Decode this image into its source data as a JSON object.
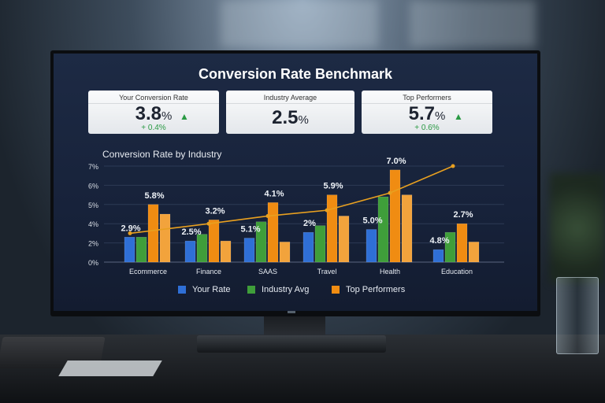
{
  "dashboard": {
    "title": "Conversion Rate Benchmark"
  },
  "cards": [
    {
      "label": "Your Conversion Rate",
      "value": "3.8",
      "unit": "%",
      "change": "+ 0.4%",
      "arrow": "up-arrow-icon"
    },
    {
      "label": "Industry Average",
      "value": "2.5",
      "unit": "%"
    },
    {
      "label": "Top Performers",
      "value": "5.7",
      "unit": "%",
      "change": "+ 0.6%",
      "arrow": "up-arrow-icon"
    }
  ],
  "legend": [
    "Your Rate",
    "Industry Avg",
    "Top Performers"
  ],
  "colors": {
    "your_rate": "#2f6fd6",
    "industry_avg": "#3f9e3a",
    "top_performers": "#f08c12",
    "top_light": "#f2a33c",
    "trend": "#e8a020",
    "green_up": "#2a9a44"
  },
  "chart_data": {
    "type": "bar",
    "title": "Conversion Rate by Industry",
    "categories": [
      "Ecommerce",
      "Finance",
      "SAAS",
      "Travel",
      "Health",
      "Education"
    ],
    "yticks": [
      "0%",
      "2%",
      "4%",
      "5%",
      "6%",
      "7%"
    ],
    "ytick_values": [
      0,
      2,
      4,
      5,
      6,
      7
    ],
    "grid": true,
    "legend_placement": "bottom",
    "series": [
      {
        "name": "Your Rate",
        "values": [
          2.6,
          2.2,
          2.5,
          3.1,
          3.4,
          1.3
        ]
      },
      {
        "name": "Industry Avg",
        "values": [
          2.6,
          2.9,
          4.1,
          3.8,
          5.4,
          3.1
        ]
      },
      {
        "name": "Top Performers",
        "values": [
          5.0,
          4.2,
          5.1,
          5.5,
          6.8,
          4.0
        ]
      },
      {
        "values": [
          4.5,
          2.2,
          2.1,
          4.4,
          5.5,
          2.1
        ]
      }
    ],
    "trend_line": [
      3.0,
      4.0,
      4.4,
      4.7,
      5.6,
      7.0
    ],
    "data_labels": [
      {
        "low": "2.9%",
        "high": "5.8%"
      },
      {
        "low": "2.5%",
        "high": "3.2%"
      },
      {
        "low": "5.1%",
        "high": "4.1%"
      },
      {
        "low": "2%",
        "high": "5.9%"
      },
      {
        "low": "5.0%",
        "high": "7.0%"
      },
      {
        "low": "4.8%",
        "high": "2.7%"
      }
    ]
  }
}
